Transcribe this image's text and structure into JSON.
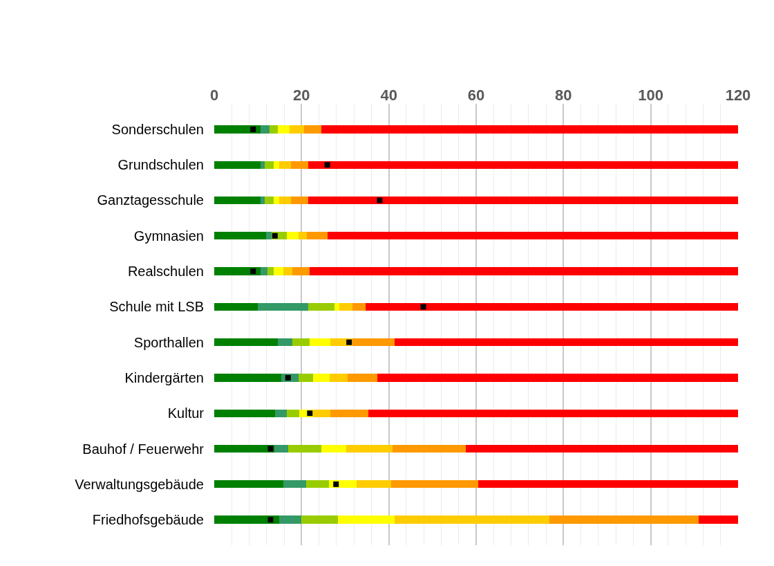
{
  "chart_data": {
    "type": "bar",
    "orientation": "horizontal",
    "stacked": true,
    "grid": "x",
    "categories": [
      "Sonderschulen",
      "Grundschulen",
      "Ganztagesschule",
      "Gymnasien",
      "Realschulen",
      "Schule mit LSB",
      "Sporthallen",
      "Kindergärten",
      "Kultur",
      "Bauhof / Feuerwehr",
      "Verwaltungsgebäude",
      "Friedhofsgebäude"
    ],
    "xlim": [
      0,
      120
    ],
    "xticks": [
      0,
      {
        "value": 4,
        "label": null
      },
      {
        "value": 8,
        "label": null
      },
      {
        "value": 12,
        "label": null
      },
      {
        "value": 16,
        "label": null
      },
      20,
      {
        "value": 24,
        "label": null
      },
      {
        "value": 28,
        "label": null
      },
      {
        "value": 32,
        "label": null
      },
      {
        "value": 36,
        "label": null
      },
      40,
      {
        "value": 44,
        "label": null
      },
      {
        "value": 48,
        "label": null
      },
      {
        "value": 52,
        "label": null
      },
      {
        "value": 56,
        "label": null
      },
      60,
      {
        "value": 64,
        "label": null
      },
      {
        "value": 68,
        "label": null
      },
      {
        "value": 72,
        "label": null
      },
      {
        "value": 76,
        "label": null
      },
      80,
      {
        "value": 84,
        "label": null
      },
      {
        "value": 88,
        "label": null
      },
      {
        "value": 92,
        "label": null
      },
      {
        "value": 96,
        "label": null
      },
      100,
      {
        "value": 104,
        "label": null
      },
      {
        "value": 108,
        "label": null
      },
      {
        "value": 112,
        "label": null
      },
      {
        "value": 116,
        "label": null
      },
      120
    ],
    "series": [
      {
        "color": "#008000",
        "values": [
          10.6,
          10.6,
          10.6,
          11.9,
          10.6,
          9.9,
          14.6,
          15.3,
          14.0,
          13.7,
          15.9,
          14.9
        ]
      },
      {
        "color": "#339966",
        "values": [
          2.0,
          1.0,
          1.0,
          1.3,
          1.6,
          11.7,
          3.3,
          4.0,
          2.6,
          3.2,
          5.1,
          5.0
        ]
      },
      {
        "color": "#99cc00",
        "values": [
          2.0,
          2.0,
          2.0,
          3.4,
          1.4,
          6.0,
          4.0,
          3.3,
          2.8,
          7.7,
          5.3,
          8.4
        ]
      },
      {
        "color": "#ffff00",
        "values": [
          2.7,
          1.3,
          1.3,
          2.7,
          2.3,
          1.0,
          4.7,
          3.9,
          3.3,
          5.6,
          6.3,
          13.0
        ]
      },
      {
        "color": "#ffcc00",
        "values": [
          3.3,
          2.7,
          2.7,
          1.9,
          2.0,
          3.0,
          5.0,
          4.1,
          3.9,
          10.7,
          8.0,
          35.5
        ]
      },
      {
        "color": "#ff9900",
        "values": [
          4.0,
          4.0,
          4.0,
          4.8,
          4.0,
          3.0,
          9.7,
          6.7,
          8.7,
          16.8,
          19.8,
          34.2
        ]
      },
      {
        "color": "#ff0000",
        "values": [
          95.4,
          98.4,
          98.4,
          94.0,
          98.1,
          85.4,
          78.7,
          82.7,
          84.7,
          62.3,
          59.6,
          9.0
        ]
      },
      {
        "type": "scatter",
        "marker": "square",
        "color": "#000000",
        "values": [
          8.9,
          25.9,
          37.9,
          13.9,
          8.9,
          47.9,
          30.9,
          16.9,
          21.9,
          12.9,
          27.9,
          12.9
        ]
      }
    ]
  }
}
